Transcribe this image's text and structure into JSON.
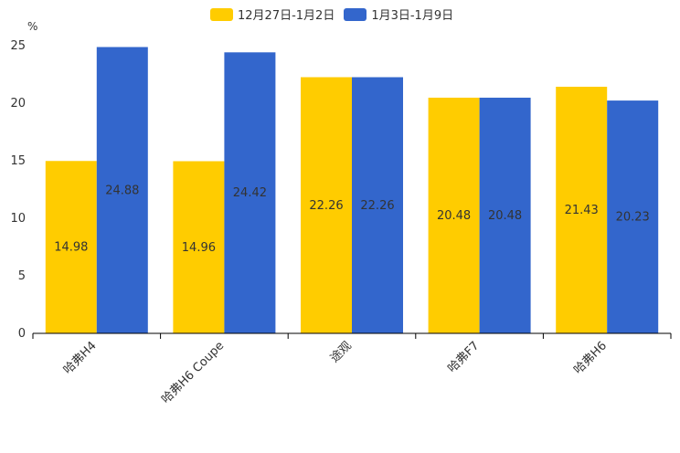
{
  "chart_data": {
    "type": "bar",
    "unit": "%",
    "categories": [
      "哈弗H4",
      "哈弗H6 Coupe",
      "途观",
      "哈弗F7",
      "哈弗H6"
    ],
    "series": [
      {
        "name": "12月27日-1月2日",
        "color": "#FFCC00",
        "values": [
          14.98,
          14.96,
          22.26,
          20.48,
          21.43
        ]
      },
      {
        "name": "1月3日-1月9日",
        "color": "#3366CC",
        "values": [
          24.88,
          24.42,
          22.26,
          20.48,
          20.23
        ]
      }
    ],
    "yticks": [
      0,
      5,
      10,
      15,
      20,
      25
    ],
    "ylim": [
      0,
      25
    ]
  }
}
